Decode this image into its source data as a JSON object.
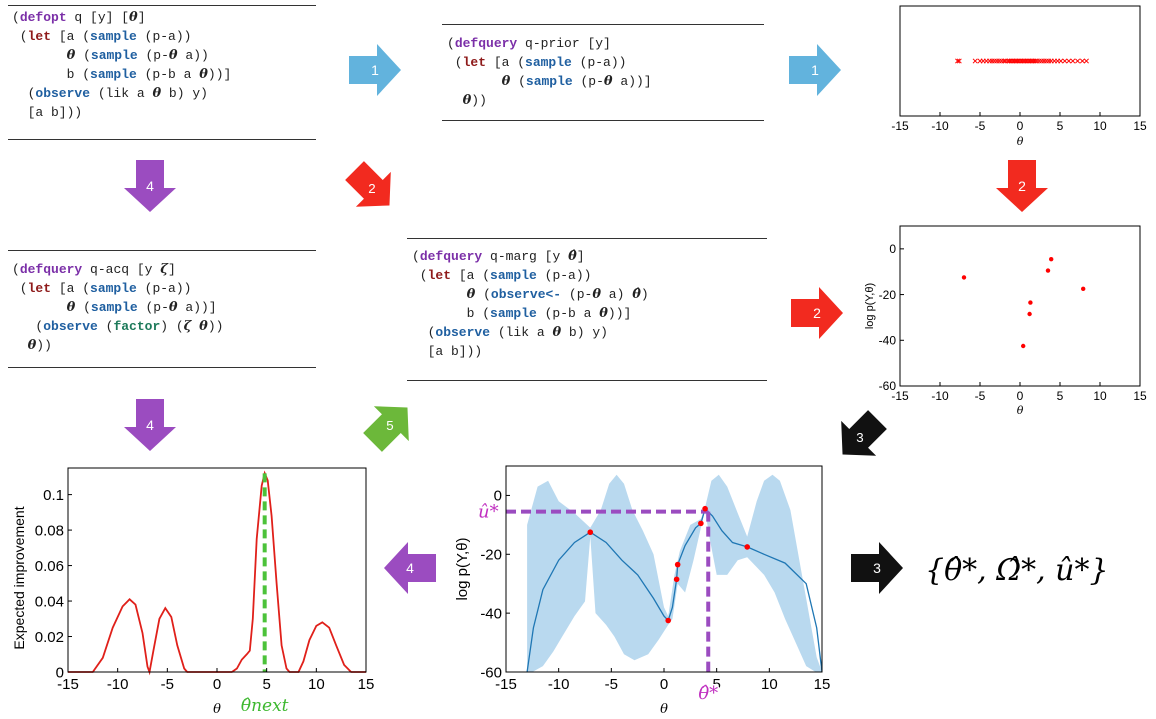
{
  "code_blocks": {
    "defopt": {
      "lines": [
        [
          {
            "t": "(",
            "c": ""
          },
          {
            "t": "defopt",
            "c": "defk"
          },
          {
            "t": " q [y] [",
            "c": ""
          },
          {
            "t": "θ",
            "c": "it"
          },
          {
            "t": "]",
            "c": ""
          }
        ],
        [
          {
            "t": " (",
            "c": ""
          },
          {
            "t": "let",
            "c": "letk"
          },
          {
            "t": " [a (",
            "c": ""
          },
          {
            "t": "sample",
            "c": "blue"
          },
          {
            "t": " (p-a))",
            "c": ""
          }
        ],
        [
          {
            "t": "       ",
            "c": ""
          },
          {
            "t": "θ",
            "c": "it"
          },
          {
            "t": " (",
            "c": ""
          },
          {
            "t": "sample",
            "c": "blue"
          },
          {
            "t": " (p-",
            "c": ""
          },
          {
            "t": "θ",
            "c": "it"
          },
          {
            "t": " a))",
            "c": ""
          }
        ],
        [
          {
            "t": "       b (",
            "c": ""
          },
          {
            "t": "sample",
            "c": "blue"
          },
          {
            "t": " (p-b a ",
            "c": ""
          },
          {
            "t": "θ",
            "c": "it"
          },
          {
            "t": "))]",
            "c": ""
          }
        ],
        [
          {
            "t": "  (",
            "c": ""
          },
          {
            "t": "observe",
            "c": "blue"
          },
          {
            "t": " (lik a ",
            "c": ""
          },
          {
            "t": "θ",
            "c": "it"
          },
          {
            "t": " b) y)",
            "c": ""
          }
        ],
        [
          {
            "t": "  [a b]))",
            "c": ""
          }
        ]
      ]
    },
    "q_prior": {
      "lines": [
        [
          {
            "t": "(",
            "c": ""
          },
          {
            "t": "defquery",
            "c": "defk"
          },
          {
            "t": " q-prior [y]",
            "c": ""
          }
        ],
        [
          {
            "t": " (",
            "c": ""
          },
          {
            "t": "let",
            "c": "letk"
          },
          {
            "t": " [a (",
            "c": ""
          },
          {
            "t": "sample",
            "c": "blue"
          },
          {
            "t": " (p-a))",
            "c": ""
          }
        ],
        [
          {
            "t": "       ",
            "c": ""
          },
          {
            "t": "θ",
            "c": "it"
          },
          {
            "t": " (",
            "c": ""
          },
          {
            "t": "sample",
            "c": "blue"
          },
          {
            "t": " (p-",
            "c": ""
          },
          {
            "t": "θ",
            "c": "it"
          },
          {
            "t": " a))]",
            "c": ""
          }
        ],
        [
          {
            "t": "  ",
            "c": ""
          },
          {
            "t": "θ",
            "c": "it"
          },
          {
            "t": "))",
            "c": ""
          }
        ]
      ]
    },
    "q_acq": {
      "lines": [
        [
          {
            "t": "(",
            "c": ""
          },
          {
            "t": "defquery",
            "c": "defk"
          },
          {
            "t": " q-acq [y ",
            "c": ""
          },
          {
            "t": "ζ",
            "c": "it"
          },
          {
            "t": "]",
            "c": ""
          }
        ],
        [
          {
            "t": " (",
            "c": ""
          },
          {
            "t": "let",
            "c": "letk"
          },
          {
            "t": " [a (",
            "c": ""
          },
          {
            "t": "sample",
            "c": "blue"
          },
          {
            "t": " (p-a))",
            "c": ""
          }
        ],
        [
          {
            "t": "       ",
            "c": ""
          },
          {
            "t": "θ",
            "c": "it"
          },
          {
            "t": " (",
            "c": ""
          },
          {
            "t": "sample",
            "c": "blue"
          },
          {
            "t": " (p-",
            "c": ""
          },
          {
            "t": "θ",
            "c": "it"
          },
          {
            "t": " a))]",
            "c": ""
          }
        ],
        [
          {
            "t": "   (",
            "c": ""
          },
          {
            "t": "observe",
            "c": "blue"
          },
          {
            "t": " (",
            "c": ""
          },
          {
            "t": "factor",
            "c": "green"
          },
          {
            "t": ") (",
            "c": ""
          },
          {
            "t": "ζ",
            "c": "it"
          },
          {
            "t": " ",
            "c": ""
          },
          {
            "t": "θ",
            "c": "it"
          },
          {
            "t": "))",
            "c": ""
          }
        ],
        [
          {
            "t": "  ",
            "c": ""
          },
          {
            "t": "θ",
            "c": "it"
          },
          {
            "t": "))",
            "c": ""
          }
        ]
      ]
    },
    "q_marg": {
      "lines": [
        [
          {
            "t": "(",
            "c": ""
          },
          {
            "t": "defquery",
            "c": "defk"
          },
          {
            "t": " q-marg [y ",
            "c": ""
          },
          {
            "t": "θ̂",
            "c": "it"
          },
          {
            "t": "]",
            "c": ""
          }
        ],
        [
          {
            "t": " (",
            "c": ""
          },
          {
            "t": "let",
            "c": "letk"
          },
          {
            "t": " [a (",
            "c": ""
          },
          {
            "t": "sample",
            "c": "blue"
          },
          {
            "t": " (p-a))",
            "c": ""
          }
        ],
        [
          {
            "t": "       ",
            "c": ""
          },
          {
            "t": "θ",
            "c": "it"
          },
          {
            "t": " (",
            "c": ""
          },
          {
            "t": "observe<-",
            "c": "blue"
          },
          {
            "t": " (p-",
            "c": ""
          },
          {
            "t": "θ",
            "c": "it"
          },
          {
            "t": " a) ",
            "c": ""
          },
          {
            "t": "θ̂",
            "c": "it"
          },
          {
            "t": ")",
            "c": ""
          }
        ],
        [
          {
            "t": "       b (",
            "c": ""
          },
          {
            "t": "sample",
            "c": "blue"
          },
          {
            "t": " (p-b a ",
            "c": ""
          },
          {
            "t": "θ",
            "c": "it"
          },
          {
            "t": "))]",
            "c": ""
          }
        ],
        [
          {
            "t": "  (",
            "c": ""
          },
          {
            "t": "observe",
            "c": "blue"
          },
          {
            "t": " (lik a ",
            "c": ""
          },
          {
            "t": "θ",
            "c": "it"
          },
          {
            "t": " b) y)",
            "c": ""
          }
        ],
        [
          {
            "t": "  [a b]))",
            "c": ""
          }
        ]
      ]
    }
  },
  "arrows": [
    {
      "label": "1",
      "color": "#62b3dd"
    },
    {
      "label": "1",
      "color": "#62b3dd"
    },
    {
      "label": "2",
      "color": "#f22a1f"
    },
    {
      "label": "2",
      "color": "#f22a1f"
    },
    {
      "label": "2",
      "color": "#f22a1f"
    },
    {
      "label": "3",
      "color": "#111111"
    },
    {
      "label": "3",
      "color": "#111111"
    },
    {
      "label": "4",
      "color": "#9b4cc0"
    },
    {
      "label": "4",
      "color": "#9b4cc0"
    },
    {
      "label": "4",
      "color": "#9b4cc0"
    },
    {
      "label": "5",
      "color": "#6cb83a"
    }
  ],
  "output_formula": "{θ̂*, Ω̂*, û*}",
  "chart_data": [
    {
      "id": "prior-samples",
      "type": "scatter",
      "marker": "x",
      "color": "#ff0000",
      "xlabel": "θ",
      "ylabel": "",
      "xlim": [
        -15,
        15
      ],
      "xticks": [
        "-15",
        "-10",
        "-5",
        "0",
        "5",
        "10",
        "15"
      ],
      "points_x": [
        -7.8,
        -7.6,
        -5.6,
        -5.0,
        -4.6,
        -4.2,
        -3.8,
        -3.5,
        -3.2,
        -2.9,
        -2.6,
        -2.3,
        -2.0,
        -1.8,
        -1.5,
        -1.3,
        -1.1,
        -0.9,
        -0.7,
        -0.5,
        -0.3,
        -0.1,
        0.1,
        0.3,
        0.5,
        0.7,
        0.9,
        1.1,
        1.3,
        1.5,
        1.7,
        1.9,
        2.1,
        2.4,
        2.7,
        3.0,
        3.3,
        3.6,
        3.9,
        4.3,
        4.7,
        5.1,
        5.6,
        6.1,
        6.6,
        7.2,
        7.8,
        8.3
      ]
    },
    {
      "id": "log-marginal-samples",
      "type": "scatter",
      "marker": "dot",
      "color": "#ff0000",
      "xlabel": "θ",
      "ylabel": "log p(Y,θ)",
      "xlim": [
        -15,
        15
      ],
      "ylim": [
        -60,
        10
      ],
      "xticks": [
        "-15",
        "-10",
        "-5",
        "0",
        "5",
        "10",
        "15"
      ],
      "yticks": [
        "0",
        "-20",
        "-40",
        "-60"
      ],
      "points": [
        [
          -7.0,
          -12.5
        ],
        [
          3.5,
          -9.5
        ],
        [
          3.9,
          -4.5
        ],
        [
          1.3,
          -23.5
        ],
        [
          1.2,
          -28.5
        ],
        [
          0.4,
          -42.5
        ],
        [
          7.9,
          -17.5
        ]
      ]
    },
    {
      "id": "gp-surrogate",
      "type": "line",
      "color": "#1f77b4",
      "band_color": "#b9d9ef",
      "xlabel": "θ",
      "ylabel": "log p(Y,θ)",
      "xlim": [
        -15,
        15
      ],
      "ylim": [
        -60,
        10
      ],
      "xticks": [
        "-15",
        "-10",
        "-5",
        "0",
        "5",
        "10",
        "15"
      ],
      "yticks": [
        "0",
        "-20",
        "-40",
        "-60"
      ],
      "mean": [
        [
          -13.0,
          -60
        ],
        [
          -12.4,
          -45
        ],
        [
          -11.5,
          -32
        ],
        [
          -10.0,
          -22
        ],
        [
          -8.5,
          -16
        ],
        [
          -7.0,
          -12.5
        ],
        [
          -5.5,
          -16
        ],
        [
          -4.0,
          -22
        ],
        [
          -2.5,
          -27
        ],
        [
          -1.0,
          -35
        ],
        [
          0.0,
          -41
        ],
        [
          0.4,
          -42.5
        ],
        [
          0.8,
          -38
        ],
        [
          1.2,
          -28.5
        ],
        [
          1.3,
          -23.5
        ],
        [
          2.0,
          -17
        ],
        [
          3.0,
          -11
        ],
        [
          3.5,
          -9.5
        ],
        [
          3.9,
          -4.5
        ],
        [
          4.6,
          -7
        ],
        [
          5.5,
          -12
        ],
        [
          6.5,
          -16
        ],
        [
          7.9,
          -17.5
        ],
        [
          9.5,
          -20
        ],
        [
          11.5,
          -23
        ],
        [
          13.5,
          -30
        ],
        [
          14.5,
          -45
        ],
        [
          15.0,
          -60
        ]
      ],
      "upper": [
        [
          -13.0,
          -10
        ],
        [
          -12.0,
          3
        ],
        [
          -11.0,
          5
        ],
        [
          -10.0,
          -2
        ],
        [
          -8.5,
          -6
        ],
        [
          -7.0,
          -11
        ],
        [
          -6.0,
          -5
        ],
        [
          -5.2,
          4
        ],
        [
          -4.5,
          7
        ],
        [
          -3.8,
          4
        ],
        [
          -3.0,
          -5
        ],
        [
          -2.0,
          -12
        ],
        [
          -1.0,
          -20
        ],
        [
          0.0,
          -38
        ],
        [
          0.4,
          -41
        ],
        [
          1.0,
          -27
        ],
        [
          1.5,
          -19
        ],
        [
          2.5,
          -10
        ],
        [
          3.5,
          -8
        ],
        [
          3.9,
          -4
        ],
        [
          4.5,
          5
        ],
        [
          5.2,
          7
        ],
        [
          6.0,
          3
        ],
        [
          7.0,
          -6
        ],
        [
          7.9,
          -14
        ],
        [
          8.8,
          -2
        ],
        [
          9.5,
          5
        ],
        [
          10.3,
          7
        ],
        [
          11.0,
          5
        ],
        [
          12.0,
          -5
        ],
        [
          13.0,
          -25
        ],
        [
          14.5,
          -55
        ],
        [
          15.0,
          -60
        ]
      ],
      "lower": [
        [
          15.0,
          -60
        ],
        [
          14.4,
          -60
        ],
        [
          13.5,
          -58
        ],
        [
          12.5,
          -50
        ],
        [
          11.5,
          -42
        ],
        [
          10.5,
          -33
        ],
        [
          9.5,
          -27
        ],
        [
          7.9,
          -21
        ],
        [
          7.0,
          -22
        ],
        [
          6.0,
          -27
        ],
        [
          5.0,
          -27
        ],
        [
          4.3,
          -14
        ],
        [
          3.9,
          -5
        ],
        [
          3.5,
          -11
        ],
        [
          2.8,
          -22
        ],
        [
          2.0,
          -33
        ],
        [
          1.3,
          -30
        ],
        [
          0.8,
          -42
        ],
        [
          0.4,
          -44
        ],
        [
          -0.5,
          -49
        ],
        [
          -1.5,
          -54
        ],
        [
          -2.8,
          -56
        ],
        [
          -3.8,
          -54
        ],
        [
          -4.7,
          -48
        ],
        [
          -5.5,
          -44
        ],
        [
          -6.5,
          -40
        ],
        [
          -7.0,
          -14
        ],
        [
          -7.5,
          -36
        ],
        [
          -8.5,
          -41
        ],
        [
          -9.5,
          -47
        ],
        [
          -10.5,
          -53
        ],
        [
          -11.5,
          -58
        ],
        [
          -12.5,
          -60
        ],
        [
          -13.0,
          -60
        ]
      ],
      "observations": [
        [
          -7.0,
          -12.5
        ],
        [
          0.4,
          -42.5
        ],
        [
          1.3,
          -23.5
        ],
        [
          1.2,
          -28.5
        ],
        [
          3.5,
          -9.5
        ],
        [
          3.9,
          -4.5
        ],
        [
          7.9,
          -17.5
        ]
      ],
      "optimum": {
        "theta": 4.2,
        "u": -5.5
      },
      "label_u": "û*",
      "label_theta": "θ̂*"
    },
    {
      "id": "expected-improvement",
      "type": "line",
      "color": "#e0201a",
      "xlabel": "θ",
      "ylabel": "Expected improvement",
      "xlim": [
        -15,
        15
      ],
      "ylim": [
        0,
        0.115
      ],
      "xticks": [
        "-15",
        "-10",
        "-5",
        "0",
        "5",
        "10",
        "15"
      ],
      "yticks": [
        "0",
        "0.02",
        "0.04",
        "0.06",
        "0.08",
        "0.1"
      ],
      "series": [
        [
          -15,
          0
        ],
        [
          -12.5,
          0
        ],
        [
          -11.5,
          0.008
        ],
        [
          -10.5,
          0.025
        ],
        [
          -9.5,
          0.037
        ],
        [
          -8.8,
          0.041
        ],
        [
          -8.2,
          0.038
        ],
        [
          -7.5,
          0.022
        ],
        [
          -7.0,
          0.003
        ],
        [
          -6.8,
          0.0
        ],
        [
          -6.4,
          0.012
        ],
        [
          -5.8,
          0.03
        ],
        [
          -5.2,
          0.036
        ],
        [
          -4.6,
          0.031
        ],
        [
          -4.0,
          0.015
        ],
        [
          -3.3,
          0.002
        ],
        [
          -3.0,
          0
        ],
        [
          1.5,
          0
        ],
        [
          2.0,
          0.002
        ],
        [
          2.5,
          0.007
        ],
        [
          3.0,
          0.01
        ],
        [
          3.3,
          0.012
        ],
        [
          3.6,
          0.03
        ],
        [
          4.0,
          0.075
        ],
        [
          4.5,
          0.105
        ],
        [
          4.8,
          0.112
        ],
        [
          5.1,
          0.108
        ],
        [
          5.5,
          0.088
        ],
        [
          6.0,
          0.05
        ],
        [
          6.5,
          0.015
        ],
        [
          7.0,
          0.002
        ],
        [
          7.3,
          0
        ],
        [
          8.2,
          0
        ],
        [
          8.7,
          0.006
        ],
        [
          9.3,
          0.018
        ],
        [
          10.0,
          0.026
        ],
        [
          10.6,
          0.028
        ],
        [
          11.3,
          0.025
        ],
        [
          12.0,
          0.015
        ],
        [
          12.8,
          0.004
        ],
        [
          13.5,
          0
        ],
        [
          15,
          0
        ]
      ],
      "next": {
        "theta": 4.8
      },
      "label_next": "θ̂next"
    }
  ]
}
